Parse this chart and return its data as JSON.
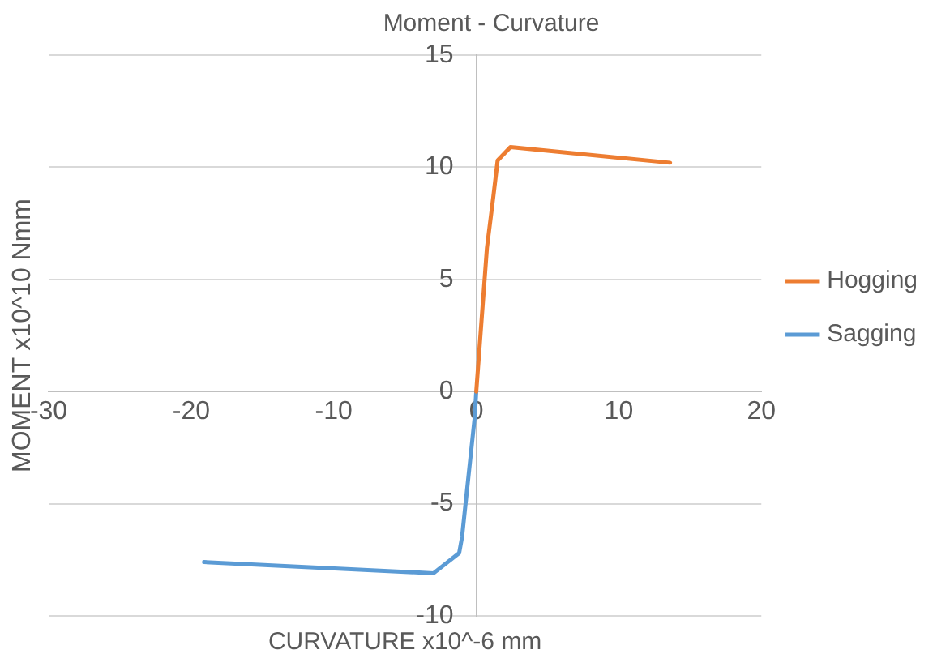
{
  "chart_data": {
    "type": "line",
    "title": "Moment - Curvature",
    "xlabel": "CURVATURE x10^-6 mm",
    "ylabel": "MOMENT x10^10 Nmm",
    "xlim": [
      -30,
      20
    ],
    "xticks": [
      -30,
      -20,
      -10,
      0,
      10,
      20
    ],
    "ylim": [
      -10,
      15
    ],
    "yticks": [
      -10,
      -5,
      0,
      5,
      10,
      15
    ],
    "grid": "y",
    "legend": "right",
    "marker": "none",
    "line_style": "solid",
    "series": [
      {
        "name": "Hogging",
        "color": "#ed7d31",
        "x": [
          0,
          0.75,
          1.2,
          1.5,
          2.4,
          13.6
        ],
        "values": [
          0,
          6.4,
          8.7,
          10.3,
          10.9,
          10.2
        ]
      },
      {
        "name": "Sagging",
        "color": "#5b9bd5",
        "x": [
          0,
          -0.1,
          -1.0,
          -1.2,
          -3.0,
          -19.1
        ],
        "values": [
          0,
          -1.1,
          -6.5,
          -7.2,
          -8.1,
          -7.6
        ]
      }
    ]
  }
}
